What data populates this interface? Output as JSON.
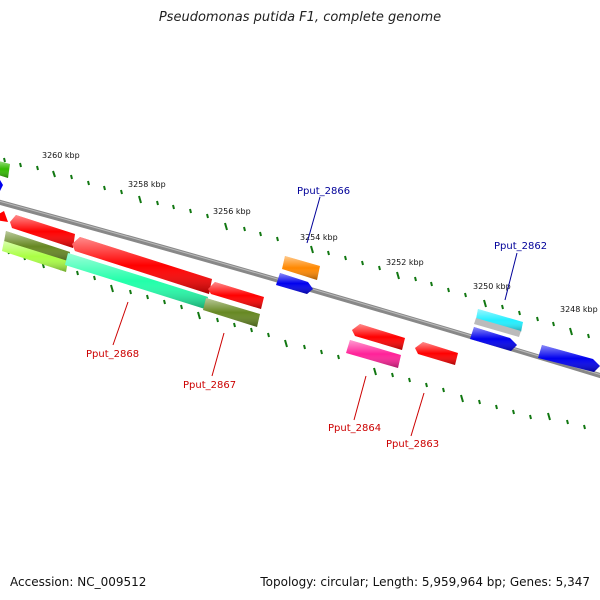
{
  "title": "Pseudomonas putida F1, complete genome",
  "footer": {
    "accession": "Accession: NC_009512",
    "topology": "Topology: circular; Length: 5,959,964 bp; Genes: 5,347"
  },
  "ticks": [
    "3260 kbp",
    "3258 kbp",
    "3256 kbp",
    "3254 kbp",
    "3252 kbp",
    "3250 kbp",
    "3248 kbp"
  ],
  "gene_labels": {
    "g2866": "Pput_2866",
    "g2862": "Pput_2862",
    "g2868": "Pput_2868",
    "g2867": "Pput_2867",
    "g2864": "Pput_2864",
    "g2863": "Pput_2863"
  },
  "colors": {
    "red": "#ff0000",
    "blue": "#0000ee",
    "green": "#33bb00",
    "orange": "#ff8800",
    "teal": "#22ffaa",
    "lime": "#aaff44",
    "olive": "#668822",
    "magenta": "#ff2299",
    "cyan": "#22eeff",
    "silver": "#bbbbbb",
    "label_red": "#cc0000",
    "label_blue": "#000099",
    "tick": "#117711",
    "axis": "#777777"
  }
}
